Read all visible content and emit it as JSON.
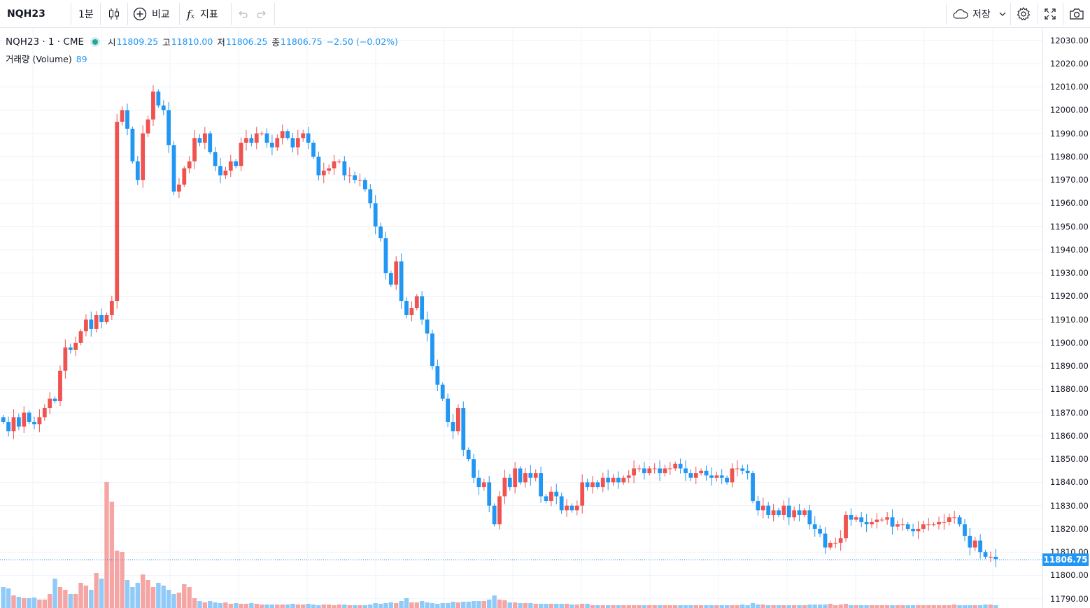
{
  "toolbar": {
    "symbol": "NQH23",
    "interval": "1분",
    "compare_label": "비교",
    "indicators_label": "지표",
    "save_label": "저장"
  },
  "legend": {
    "title": "NQH23 · 1 · CME",
    "open_label": "시",
    "open": "11809.25",
    "high_label": "고",
    "high": "11810.00",
    "low_label": "저",
    "low": "11806.25",
    "close_label": "종",
    "close": "11806.75",
    "change": "−2.50 (−0.02%)",
    "volume_label": "거래량 (Volume)",
    "volume_value": "89"
  },
  "colors": {
    "up": "#ef5350",
    "down": "#2196f3",
    "up_volume": "#f5a5a4",
    "down_volume": "#90caf9",
    "accent": "#2196f3",
    "grid": "#f0f3fa"
  },
  "chart_data": {
    "type": "candlestick",
    "y_axis": {
      "ticks": [
        "12030.00",
        "12020.00",
        "12010.00",
        "12000.00",
        "11990.00",
        "11980.00",
        "11970.00",
        "11960.00",
        "11950.00",
        "11940.00",
        "11930.00",
        "11920.00",
        "11910.00",
        "11900.00",
        "11890.00",
        "11880.00",
        "11870.00",
        "11860.00",
        "11850.00",
        "11840.00",
        "11830.00",
        "11820.00",
        "11810.00",
        "11800.00",
        "11790.00"
      ],
      "range": [
        11786,
        12035
      ]
    },
    "last_price": "11806.75",
    "start_price": 11868,
    "closes": [
      11866,
      11862,
      11868,
      11864,
      11870,
      11866,
      11865,
      11868,
      11872,
      11876,
      11875,
      11888,
      11898,
      11897,
      11900,
      11905,
      11910,
      11906,
      11912,
      11909,
      11912,
      11918,
      11995,
      12000,
      11992,
      11978,
      11970,
      11990,
      11996,
      12008,
      12002,
      12000,
      11985,
      11965,
      11968,
      11975,
      11978,
      11988,
      11986,
      11990,
      11982,
      11976,
      11972,
      11974,
      11978,
      11976,
      11986,
      11988,
      11986,
      11990,
      11990,
      11986,
      11984,
      11988,
      11991,
      11988,
      11984,
      11988,
      11990,
      11986,
      11980,
      11972,
      11974,
      11975,
      11978,
      11978,
      11972,
      11972,
      11970,
      11970,
      11966,
      11960,
      11950,
      11945,
      11930,
      11925,
      11935,
      11918,
      11912,
      11915,
      11920,
      11910,
      11904,
      11890,
      11882,
      11876,
      11866,
      11862,
      11872,
      11854,
      11850,
      11842,
      11838,
      11840,
      11830,
      11822,
      11834,
      11842,
      11838,
      11846,
      11840,
      11844,
      11842,
      11844,
      11834,
      11832,
      11836,
      11834,
      11828,
      11830,
      11828,
      11830,
      11840,
      11838,
      11840,
      11838,
      11842,
      11840,
      11842,
      11840,
      11842,
      11843,
      11846,
      11846,
      11844,
      11846,
      11846,
      11844,
      11846,
      11846,
      11848,
      11846,
      11844,
      11842,
      11844,
      11845,
      11843,
      11842,
      11843,
      11842,
      11840,
      11846,
      11846,
      11845,
      11844,
      11832,
      11828,
      11830,
      11826,
      11828,
      11826,
      11830,
      11825,
      11828,
      11826,
      11828,
      11822,
      11820,
      11818,
      11812,
      11814,
      11814,
      11816,
      11826,
      11824,
      11825,
      11823,
      11822,
      11823,
      11824,
      11824,
      11825,
      11821,
      11822,
      11822,
      11820,
      11819,
      11820,
      11822,
      11822,
      11822,
      11823,
      11823,
      11825,
      11825,
      11822,
      11817,
      11812,
      11815,
      11810,
      11808,
      11808,
      11807
    ],
    "volumes": [
      30,
      28,
      18,
      16,
      14,
      14,
      15,
      12,
      12,
      20,
      42,
      30,
      26,
      20,
      20,
      36,
      32,
      26,
      50,
      42,
      180,
      152,
      82,
      80,
      40,
      30,
      36,
      48,
      40,
      30,
      36,
      32,
      26,
      20,
      22,
      34,
      30,
      14,
      10,
      8,
      10,
      8,
      7,
      8,
      6,
      7,
      6,
      6,
      7,
      6,
      5,
      5,
      5,
      5,
      5,
      5,
      6,
      5,
      5,
      6,
      5,
      4,
      5,
      5,
      4,
      5,
      5,
      4,
      4,
      4,
      4,
      5,
      7,
      6,
      7,
      8,
      7,
      10,
      14,
      8,
      8,
      10,
      8,
      7,
      6,
      7,
      7,
      9,
      8,
      9,
      9,
      10,
      10,
      10,
      12,
      18,
      12,
      11,
      8,
      8,
      7,
      7,
      7,
      6,
      6,
      6,
      6,
      6,
      6,
      6,
      5,
      5,
      6,
      6,
      4,
      4,
      4,
      4,
      4,
      4,
      4,
      4,
      4,
      4,
      4,
      4,
      4,
      4,
      4,
      4,
      4,
      4,
      4,
      4,
      4,
      4,
      4,
      4,
      4,
      4,
      4,
      4,
      4,
      5,
      4,
      7,
      5,
      5,
      4,
      4,
      4,
      4,
      4,
      4,
      4,
      4,
      5,
      5,
      5,
      5,
      6,
      4,
      5,
      6,
      4,
      4,
      4,
      4,
      4,
      4,
      4,
      4,
      4,
      4,
      4,
      4,
      4,
      4,
      4,
      4,
      4,
      4,
      4,
      4,
      5,
      4,
      4,
      4,
      4,
      4,
      5,
      5,
      4
    ]
  }
}
